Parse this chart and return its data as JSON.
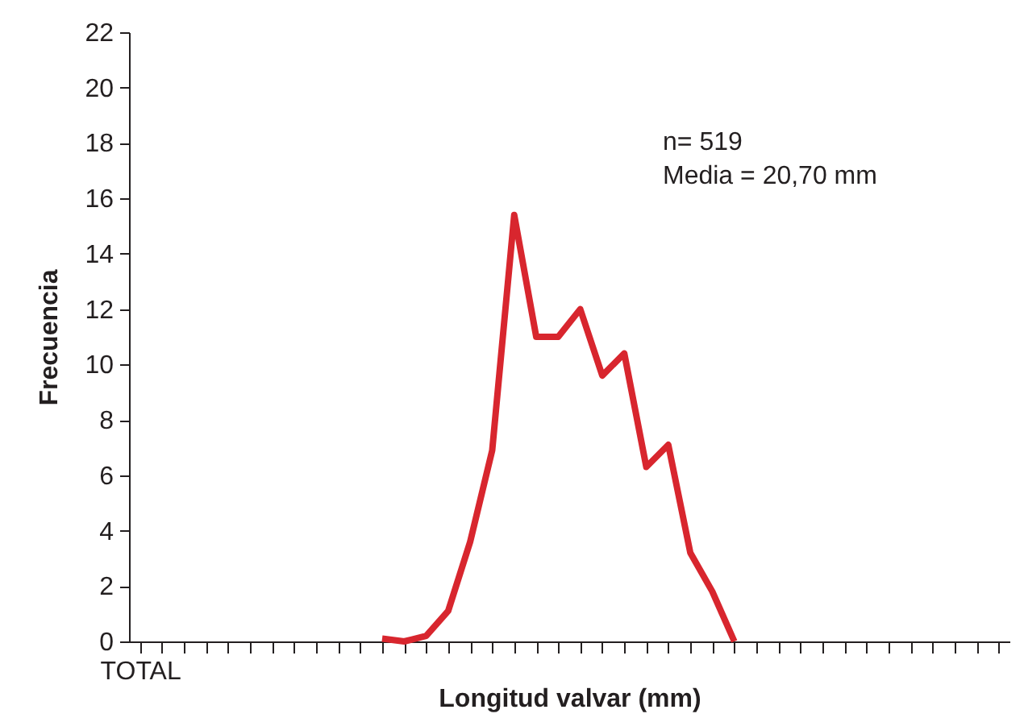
{
  "chart_data": {
    "type": "line",
    "xlabel": "Longitud valvar (mm)",
    "ylabel": "Frecuencia",
    "categories": [
      "TOTAL",
      null,
      null,
      null,
      null,
      null,
      null,
      null,
      null,
      null,
      null,
      null,
      null,
      null,
      null,
      null,
      null,
      null,
      null,
      null,
      null,
      null,
      null,
      null,
      null,
      null,
      null,
      null,
      null,
      null,
      null,
      null,
      null,
      null,
      null,
      null,
      null,
      null,
      null,
      null
    ],
    "series": [
      {
        "color": "#d8262e",
        "values": [
          null,
          null,
          null,
          null,
          null,
          null,
          null,
          null,
          null,
          null,
          null,
          0.1,
          0,
          0.2,
          1.1,
          3.6,
          6.9,
          15.4,
          11,
          11,
          12,
          9.6,
          10.4,
          6.3,
          7.1,
          3.2,
          1.8,
          0,
          null,
          null,
          null,
          null,
          null,
          null,
          null,
          null,
          null,
          null,
          null,
          null
        ]
      }
    ],
    "ylim": [
      0,
      22
    ],
    "yticks": [
      0,
      2,
      4,
      6,
      8,
      10,
      12,
      14,
      16,
      18,
      20,
      22
    ],
    "grid": false,
    "marker": "none",
    "line_style": "solid",
    "annotations": [
      "n= 519",
      "Media = 20,70 mm"
    ]
  }
}
